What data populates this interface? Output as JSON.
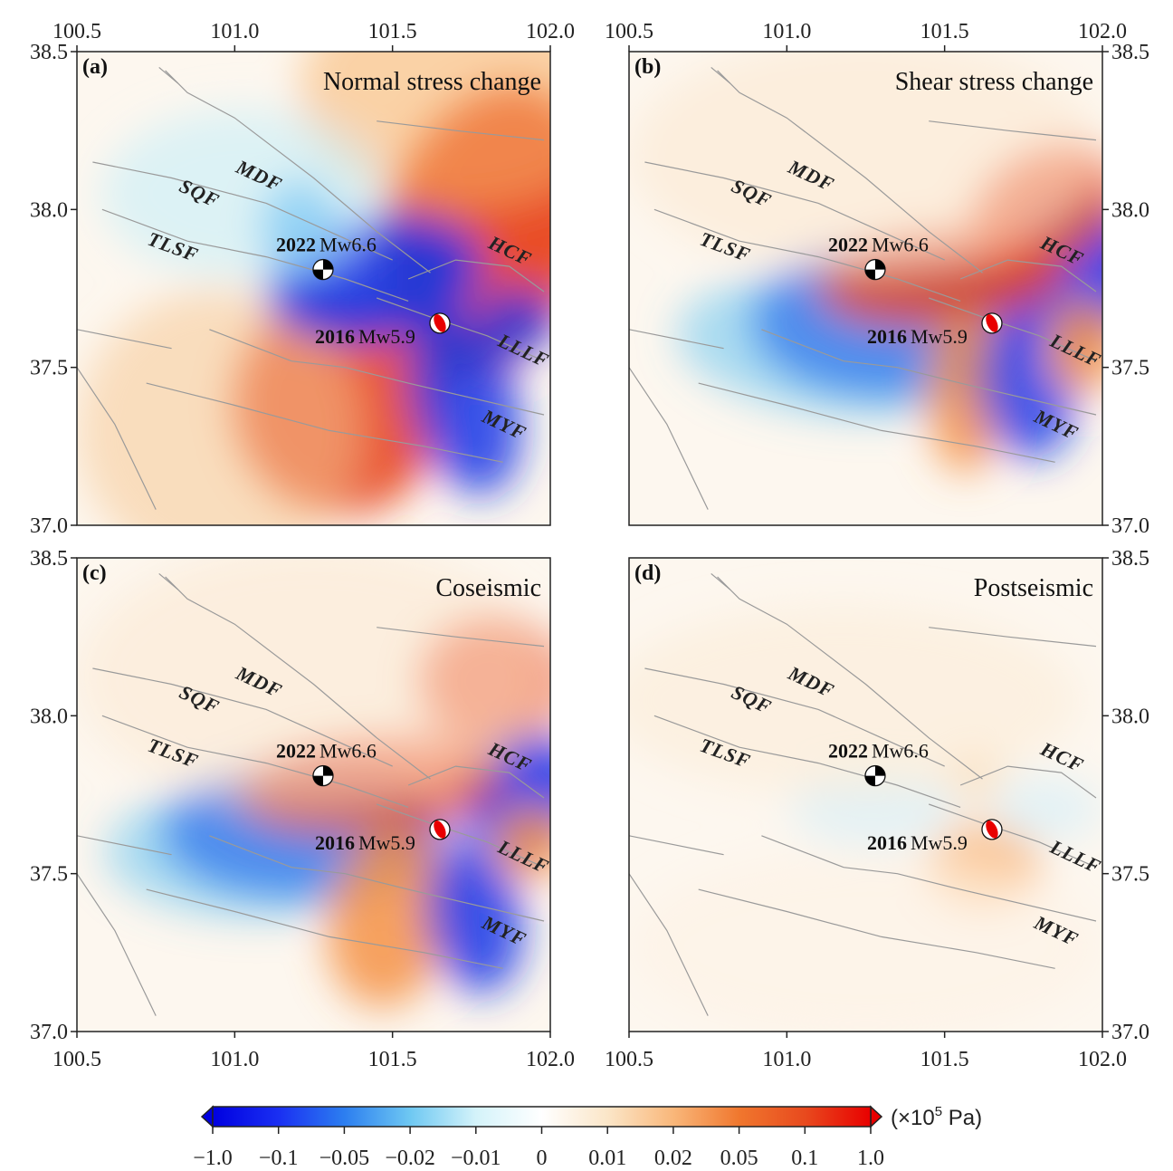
{
  "figure": {
    "colorbar_unit": "(×10",
    "colorbar_unit_exp": "5",
    "colorbar_unit_tail": " Pa)",
    "colorbar_ticks": [
      "−1.0",
      "−0.1",
      "−0.05",
      "−0.02",
      "−0.01",
      "0",
      "0.01",
      "0.02",
      "0.05",
      "0.1",
      "1.0"
    ],
    "colorbar_colors": [
      "#0000e0",
      "#1a2ff2",
      "#2c7ef0",
      "#6ec8f2",
      "#d4f3fa",
      "#ffffff",
      "#fbe6c8",
      "#f9b77a",
      "#f0772e",
      "#e84a1e",
      "#e80000"
    ]
  },
  "chart_data": [
    {
      "type": "heatmap",
      "panel_label": "(a)",
      "title": "Normal stress change",
      "xlim": [
        100.5,
        102.0
      ],
      "ylim": [
        37.0,
        38.5
      ],
      "x_ticks": [
        "100.5",
        "101.0",
        "101.5",
        "102.0"
      ],
      "y_ticks": [
        "37.0",
        "37.5",
        "38.0",
        "38.5"
      ],
      "fault_labels": [
        "MDF",
        "SQF",
        "TLSF",
        "HCF",
        "LLLF",
        "MYF"
      ],
      "events": [
        {
          "year": "2022",
          "mag": "Mw6.6",
          "lon": 101.28,
          "lat": 37.81
        },
        {
          "year": "2016",
          "mag": "Mw5.9",
          "lon": 101.65,
          "lat": 37.64
        }
      ]
    },
    {
      "type": "heatmap",
      "panel_label": "(b)",
      "title": "Shear stress change",
      "xlim": [
        100.5,
        102.0
      ],
      "ylim": [
        37.0,
        38.5
      ],
      "x_ticks": [
        "100.5",
        "101.0",
        "101.5",
        "102.0"
      ],
      "y_ticks": [
        "37.0",
        "37.5",
        "38.0",
        "38.5"
      ],
      "fault_labels": [
        "MDF",
        "SQF",
        "TLSF",
        "HCF",
        "LLLF",
        "MYF"
      ],
      "events": [
        {
          "year": "2022",
          "mag": "Mw6.6",
          "lon": 101.28,
          "lat": 37.81
        },
        {
          "year": "2016",
          "mag": "Mw5.9",
          "lon": 101.65,
          "lat": 37.64
        }
      ]
    },
    {
      "type": "heatmap",
      "panel_label": "(c)",
      "title": "Coseismic",
      "xlim": [
        100.5,
        102.0
      ],
      "ylim": [
        37.0,
        38.5
      ],
      "x_ticks": [
        "100.5",
        "101.0",
        "101.5",
        "102.0"
      ],
      "y_ticks": [
        "37.0",
        "37.5",
        "38.0",
        "38.5"
      ],
      "fault_labels": [
        "MDF",
        "SQF",
        "TLSF",
        "HCF",
        "LLLF",
        "MYF"
      ],
      "events": [
        {
          "year": "2022",
          "mag": "Mw6.6",
          "lon": 101.28,
          "lat": 37.81
        },
        {
          "year": "2016",
          "mag": "Mw5.9",
          "lon": 101.65,
          "lat": 37.64
        }
      ]
    },
    {
      "type": "heatmap",
      "panel_label": "(d)",
      "title": "Postseismic",
      "xlim": [
        100.5,
        102.0
      ],
      "ylim": [
        37.0,
        38.5
      ],
      "x_ticks": [
        "100.5",
        "101.0",
        "101.5",
        "102.0"
      ],
      "y_ticks": [
        "37.0",
        "37.5",
        "38.0",
        "38.5"
      ],
      "fault_labels": [
        "MDF",
        "SQF",
        "TLSF",
        "HCF",
        "LLLF",
        "MYF"
      ],
      "events": [
        {
          "year": "2022",
          "mag": "Mw6.6",
          "lon": 101.28,
          "lat": 37.81
        },
        {
          "year": "2016",
          "mag": "Mw5.9",
          "lon": 101.65,
          "lat": 37.64
        }
      ]
    }
  ]
}
